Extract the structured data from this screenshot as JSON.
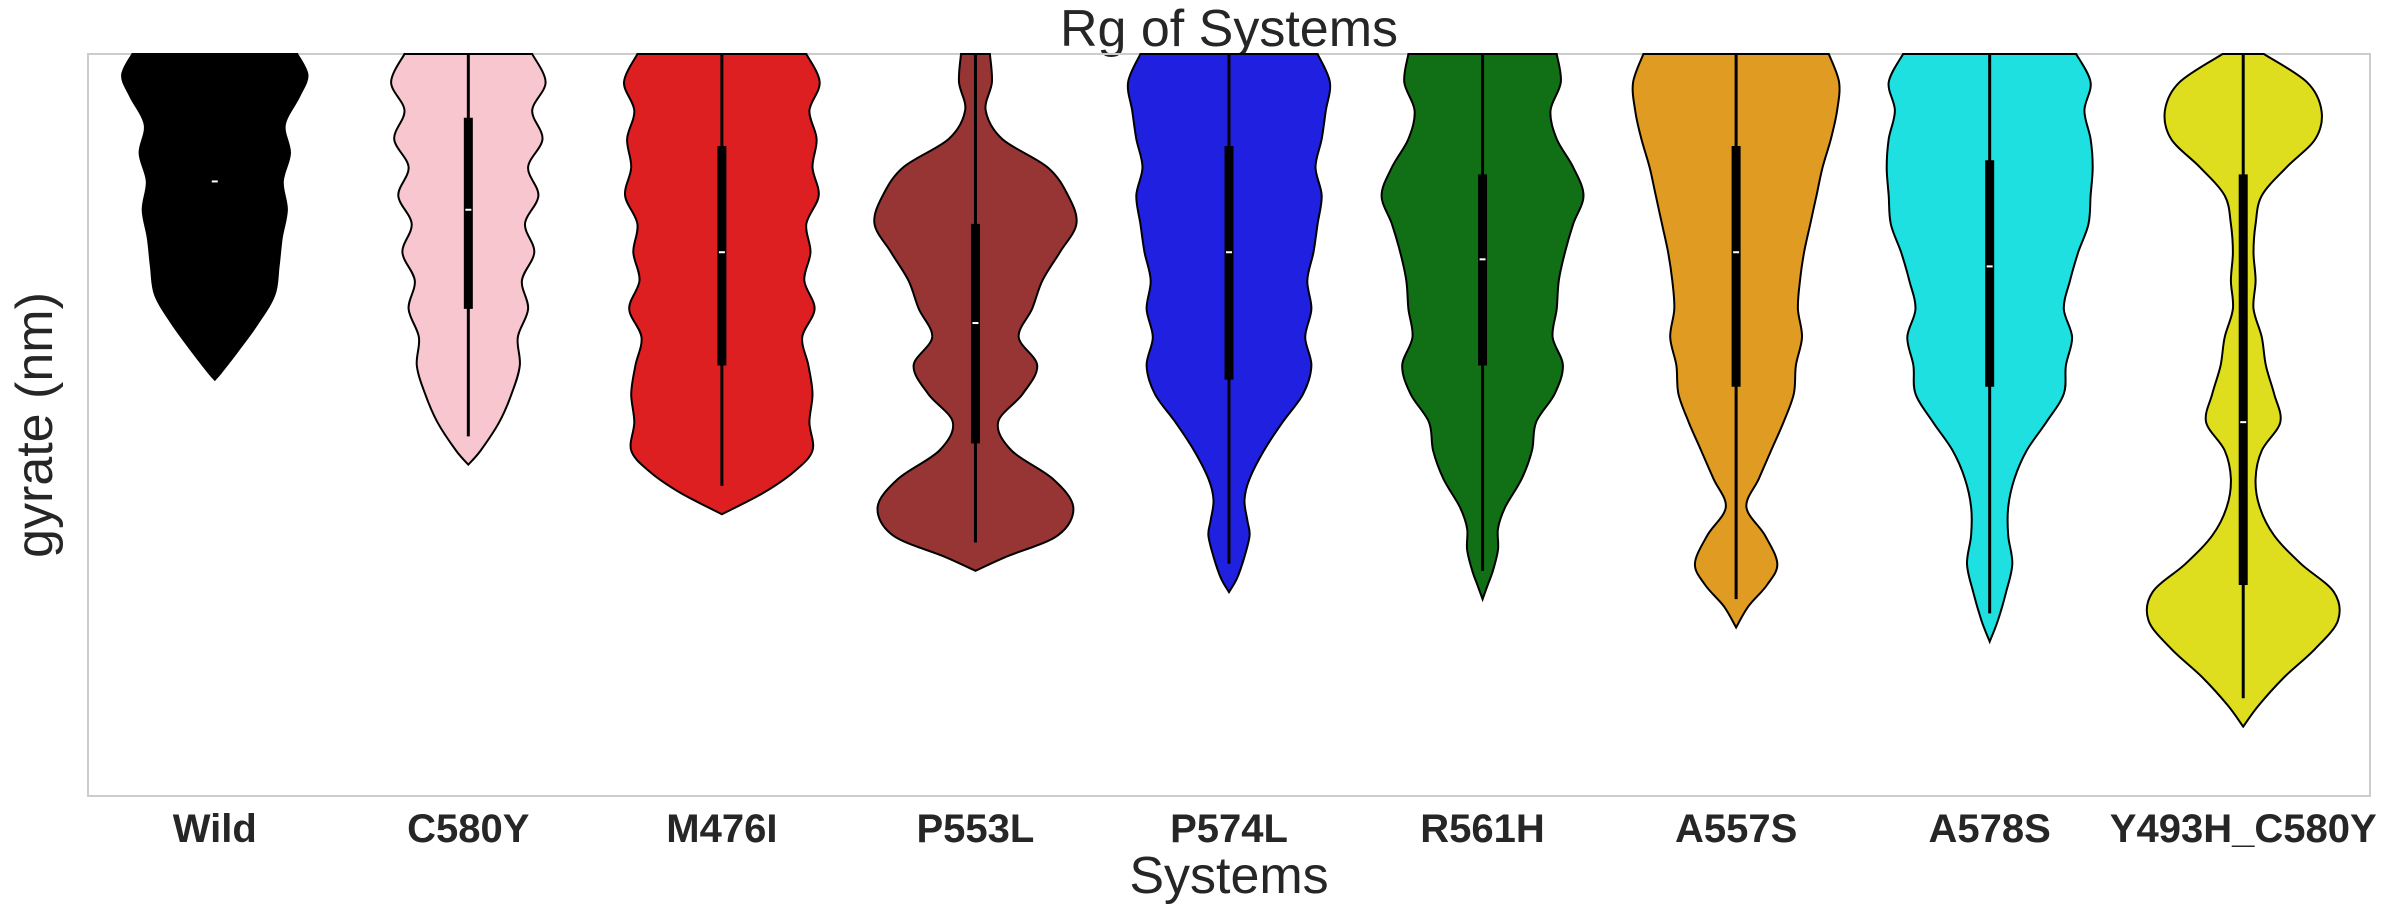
{
  "chart_data": {
    "type": "violin",
    "title": "Rg of Systems",
    "xlabel": "Systems",
    "ylabel": "gyrate (nm)",
    "y_tick_label": "",
    "ylim": [
      0,
      100
    ],
    "grid": false,
    "series": [
      {
        "name": "Wild",
        "color": "#000000",
        "top": 100,
        "bottom": 54,
        "q1": 82,
        "q3": 82,
        "median": 82,
        "profile": [
          [
            100,
            0.8
          ],
          [
            97,
            0.9
          ],
          [
            94,
            0.82
          ],
          [
            90,
            0.68
          ],
          [
            86,
            0.73
          ],
          [
            82,
            0.66
          ],
          [
            78,
            0.7
          ],
          [
            74,
            0.65
          ],
          [
            70,
            0.62
          ],
          [
            66,
            0.58
          ],
          [
            62,
            0.42
          ],
          [
            58,
            0.22
          ],
          [
            55,
            0.06
          ],
          [
            54,
            0
          ]
        ]
      },
      {
        "name": "C580Y",
        "color": "#f7c6cf",
        "top": 100,
        "bottom": 42,
        "q1": 64,
        "q3": 91,
        "median": 78,
        "profile": [
          [
            100,
            0.62
          ],
          [
            96,
            0.75
          ],
          [
            92,
            0.62
          ],
          [
            88,
            0.72
          ],
          [
            84,
            0.58
          ],
          [
            80,
            0.68
          ],
          [
            76,
            0.55
          ],
          [
            72,
            0.64
          ],
          [
            68,
            0.52
          ],
          [
            64,
            0.58
          ],
          [
            60,
            0.48
          ],
          [
            56,
            0.5
          ],
          [
            52,
            0.42
          ],
          [
            48,
            0.3
          ],
          [
            44,
            0.12
          ],
          [
            42,
            0
          ]
        ]
      },
      {
        "name": "M476I",
        "color": "#de1f22",
        "top": 100,
        "bottom": 35,
        "q1": 56,
        "q3": 87,
        "median": 72,
        "profile": [
          [
            100,
            0.82
          ],
          [
            96,
            0.95
          ],
          [
            92,
            0.85
          ],
          [
            88,
            0.92
          ],
          [
            84,
            0.88
          ],
          [
            80,
            0.94
          ],
          [
            76,
            0.82
          ],
          [
            72,
            0.86
          ],
          [
            68,
            0.8
          ],
          [
            64,
            0.9
          ],
          [
            60,
            0.78
          ],
          [
            56,
            0.84
          ],
          [
            52,
            0.88
          ],
          [
            48,
            0.85
          ],
          [
            44,
            0.88
          ],
          [
            41,
            0.7
          ],
          [
            38,
            0.4
          ],
          [
            35,
            0
          ]
        ]
      },
      {
        "name": "P553L",
        "color": "#973434",
        "top": 100,
        "bottom": 27,
        "q1": 45,
        "q3": 76,
        "median": 62,
        "profile": [
          [
            100,
            0.14
          ],
          [
            96,
            0.16
          ],
          [
            92,
            0.1
          ],
          [
            88,
            0.26
          ],
          [
            84,
            0.7
          ],
          [
            80,
            0.9
          ],
          [
            76,
            0.98
          ],
          [
            72,
            0.82
          ],
          [
            68,
            0.65
          ],
          [
            64,
            0.55
          ],
          [
            60,
            0.42
          ],
          [
            56,
            0.6
          ],
          [
            52,
            0.46
          ],
          [
            48,
            0.22
          ],
          [
            44,
            0.35
          ],
          [
            40,
            0.75
          ],
          [
            36,
            0.95
          ],
          [
            32,
            0.8
          ],
          [
            29,
            0.3
          ],
          [
            27,
            0
          ]
        ]
      },
      {
        "name": "P574L",
        "color": "#2020e0",
        "top": 100,
        "bottom": 24,
        "q1": 54,
        "q3": 87,
        "median": 72,
        "profile": [
          [
            100,
            0.86
          ],
          [
            96,
            0.98
          ],
          [
            92,
            0.94
          ],
          [
            88,
            0.9
          ],
          [
            84,
            0.84
          ],
          [
            80,
            0.9
          ],
          [
            76,
            0.86
          ],
          [
            72,
            0.82
          ],
          [
            68,
            0.76
          ],
          [
            64,
            0.8
          ],
          [
            60,
            0.74
          ],
          [
            56,
            0.8
          ],
          [
            52,
            0.72
          ],
          [
            48,
            0.52
          ],
          [
            44,
            0.34
          ],
          [
            40,
            0.2
          ],
          [
            37,
            0.15
          ],
          [
            34,
            0.18
          ],
          [
            32,
            0.2
          ],
          [
            29,
            0.15
          ],
          [
            26,
            0.08
          ],
          [
            24,
            0
          ]
        ]
      },
      {
        "name": "R561H",
        "color": "#117016",
        "top": 100,
        "bottom": 23,
        "q1": 56,
        "q3": 83,
        "median": 71,
        "profile": [
          [
            100,
            0.72
          ],
          [
            96,
            0.76
          ],
          [
            92,
            0.66
          ],
          [
            88,
            0.72
          ],
          [
            84,
            0.88
          ],
          [
            80,
            0.98
          ],
          [
            76,
            0.88
          ],
          [
            72,
            0.8
          ],
          [
            68,
            0.74
          ],
          [
            64,
            0.72
          ],
          [
            60,
            0.68
          ],
          [
            56,
            0.78
          ],
          [
            52,
            0.7
          ],
          [
            48,
            0.52
          ],
          [
            44,
            0.48
          ],
          [
            40,
            0.38
          ],
          [
            36,
            0.22
          ],
          [
            33,
            0.15
          ],
          [
            30,
            0.15
          ],
          [
            27,
            0.1
          ],
          [
            25,
            0.05
          ],
          [
            23,
            0
          ]
        ]
      },
      {
        "name": "A557S",
        "color": "#df9b22",
        "top": 100,
        "bottom": 19,
        "q1": 53,
        "q3": 87,
        "median": 72,
        "profile": [
          [
            100,
            0.9
          ],
          [
            96,
            1.0
          ],
          [
            92,
            0.98
          ],
          [
            88,
            0.92
          ],
          [
            84,
            0.84
          ],
          [
            80,
            0.78
          ],
          [
            76,
            0.72
          ],
          [
            72,
            0.66
          ],
          [
            68,
            0.62
          ],
          [
            64,
            0.6
          ],
          [
            60,
            0.64
          ],
          [
            56,
            0.58
          ],
          [
            52,
            0.56
          ],
          [
            48,
            0.46
          ],
          [
            44,
            0.34
          ],
          [
            40,
            0.22
          ],
          [
            36,
            0.1
          ],
          [
            32,
            0.28
          ],
          [
            28,
            0.4
          ],
          [
            25,
            0.3
          ],
          [
            22,
            0.12
          ],
          [
            19,
            0
          ]
        ]
      },
      {
        "name": "A578S",
        "color": "#1fe0e0",
        "top": 100,
        "bottom": 17,
        "q1": 53,
        "q3": 85,
        "median": 70,
        "profile": [
          [
            100,
            0.84
          ],
          [
            96,
            0.98
          ],
          [
            92,
            0.92
          ],
          [
            88,
            0.98
          ],
          [
            84,
            1.0
          ],
          [
            80,
            0.98
          ],
          [
            76,
            0.96
          ],
          [
            72,
            0.86
          ],
          [
            68,
            0.78
          ],
          [
            64,
            0.72
          ],
          [
            60,
            0.8
          ],
          [
            56,
            0.74
          ],
          [
            52,
            0.72
          ],
          [
            48,
            0.55
          ],
          [
            44,
            0.36
          ],
          [
            40,
            0.24
          ],
          [
            36,
            0.18
          ],
          [
            32,
            0.18
          ],
          [
            28,
            0.22
          ],
          [
            24,
            0.16
          ],
          [
            20,
            0.08
          ],
          [
            17,
            0
          ]
        ]
      },
      {
        "name": "Y493H_C580Y",
        "color": "#dede1f",
        "top": 100,
        "bottom": 5,
        "q1": 25,
        "q3": 83,
        "median": 48,
        "profile": [
          [
            100,
            0.2
          ],
          [
            96,
            0.62
          ],
          [
            92,
            0.76
          ],
          [
            88,
            0.7
          ],
          [
            84,
            0.42
          ],
          [
            80,
            0.18
          ],
          [
            76,
            0.12
          ],
          [
            72,
            0.1
          ],
          [
            68,
            0.12
          ],
          [
            64,
            0.1
          ],
          [
            60,
            0.18
          ],
          [
            56,
            0.22
          ],
          [
            52,
            0.3
          ],
          [
            48,
            0.36
          ],
          [
            44,
            0.18
          ],
          [
            40,
            0.12
          ],
          [
            36,
            0.16
          ],
          [
            32,
            0.3
          ],
          [
            28,
            0.56
          ],
          [
            24,
            0.88
          ],
          [
            20,
            0.92
          ],
          [
            16,
            0.7
          ],
          [
            12,
            0.4
          ],
          [
            8,
            0.15
          ],
          [
            5,
            0
          ]
        ]
      }
    ]
  }
}
